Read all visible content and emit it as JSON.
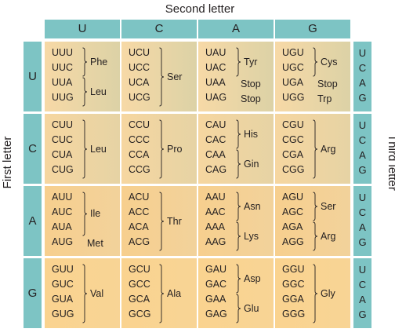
{
  "labels": {
    "second": "Second letter",
    "first": "First letter",
    "third": "Third letter"
  },
  "columns": [
    "U",
    "C",
    "A",
    "G"
  ],
  "rows": [
    {
      "letter": "U",
      "third": [
        "U",
        "C",
        "A",
        "G"
      ],
      "cells": [
        {
          "codons": [
            "UUU",
            "UUC",
            "UUA",
            "UUG"
          ],
          "groups": [
            {
              "name": "Phe",
              "start": 0,
              "span": 2,
              "brace": true
            },
            {
              "name": "Leu",
              "start": 2,
              "span": 2,
              "brace": true
            }
          ]
        },
        {
          "codons": [
            "UCU",
            "UCC",
            "UCA",
            "UCG"
          ],
          "groups": [
            {
              "name": "Ser",
              "start": 0,
              "span": 4,
              "brace": true
            }
          ]
        },
        {
          "codons": [
            "UAU",
            "UAC",
            "UAA",
            "UAG"
          ],
          "groups": [
            {
              "name": "Tyr",
              "start": 0,
              "span": 2,
              "brace": true
            },
            {
              "name": "Stop",
              "start": 2,
              "span": 1,
              "brace": false
            },
            {
              "name": "Stop",
              "start": 3,
              "span": 1,
              "brace": false
            }
          ]
        },
        {
          "codons": [
            "UGU",
            "UGC",
            "UGA",
            "UGG"
          ],
          "groups": [
            {
              "name": "Cys",
              "start": 0,
              "span": 2,
              "brace": true
            },
            {
              "name": "Stop",
              "start": 2,
              "span": 1,
              "brace": false
            },
            {
              "name": "Trp",
              "start": 3,
              "span": 1,
              "brace": false
            }
          ]
        }
      ]
    },
    {
      "letter": "C",
      "third": [
        "U",
        "C",
        "A",
        "G"
      ],
      "cells": [
        {
          "codons": [
            "CUU",
            "CUC",
            "CUA",
            "CUG"
          ],
          "groups": [
            {
              "name": "Leu",
              "start": 0,
              "span": 4,
              "brace": true
            }
          ]
        },
        {
          "codons": [
            "CCU",
            "CCC",
            "CCA",
            "CCG"
          ],
          "groups": [
            {
              "name": "Pro",
              "start": 0,
              "span": 4,
              "brace": true
            }
          ]
        },
        {
          "codons": [
            "CAU",
            "CAC",
            "CAA",
            "CAG"
          ],
          "groups": [
            {
              "name": "His",
              "start": 0,
              "span": 2,
              "brace": true
            },
            {
              "name": "Gin",
              "start": 2,
              "span": 2,
              "brace": true
            }
          ]
        },
        {
          "codons": [
            "CGU",
            "CGC",
            "CGA",
            "CGG"
          ],
          "groups": [
            {
              "name": "Arg",
              "start": 0,
              "span": 4,
              "brace": true
            }
          ]
        }
      ]
    },
    {
      "letter": "A",
      "third": [
        "U",
        "C",
        "A",
        "G"
      ],
      "cells": [
        {
          "codons": [
            "AUU",
            "AUC",
            "AUA",
            "AUG"
          ],
          "groups": [
            {
              "name": "Ile",
              "start": 0,
              "span": 3,
              "brace": true
            },
            {
              "name": "Met",
              "start": 3,
              "span": 1,
              "brace": false
            }
          ]
        },
        {
          "codons": [
            "ACU",
            "ACC",
            "ACA",
            "ACG"
          ],
          "groups": [
            {
              "name": "Thr",
              "start": 0,
              "span": 4,
              "brace": true
            }
          ]
        },
        {
          "codons": [
            "AAU",
            "AAC",
            "AAA",
            "AAG"
          ],
          "groups": [
            {
              "name": "Asn",
              "start": 0,
              "span": 2,
              "brace": true
            },
            {
              "name": "Lys",
              "start": 2,
              "span": 2,
              "brace": true
            }
          ]
        },
        {
          "codons": [
            "AGU",
            "AGC",
            "AGA",
            "AGG"
          ],
          "groups": [
            {
              "name": "Ser",
              "start": 0,
              "span": 2,
              "brace": true
            },
            {
              "name": "Arg",
              "start": 2,
              "span": 2,
              "brace": true
            }
          ]
        }
      ]
    },
    {
      "letter": "G",
      "third": [
        "U",
        "C",
        "A",
        "G"
      ],
      "cells": [
        {
          "codons": [
            "GUU",
            "GUC",
            "GUA",
            "GUG"
          ],
          "groups": [
            {
              "name": "Val",
              "start": 0,
              "span": 4,
              "brace": true
            }
          ]
        },
        {
          "codons": [
            "GCU",
            "GCC",
            "GCA",
            "GCG"
          ],
          "groups": [
            {
              "name": "Ala",
              "start": 0,
              "span": 4,
              "brace": true
            }
          ]
        },
        {
          "codons": [
            "GAU",
            "GAC",
            "GAA",
            "GAG"
          ],
          "groups": [
            {
              "name": "Asp",
              "start": 0,
              "span": 2,
              "brace": true
            },
            {
              "name": "Glu",
              "start": 2,
              "span": 2,
              "brace": true
            }
          ]
        },
        {
          "codons": [
            "GGU",
            "GGC",
            "GGA",
            "GGG"
          ],
          "groups": [
            {
              "name": "Gly",
              "start": 0,
              "span": 4,
              "brace": true
            }
          ]
        }
      ]
    }
  ],
  "colors": {
    "header_teal": "#7dc4c4",
    "text": "#231f20"
  }
}
